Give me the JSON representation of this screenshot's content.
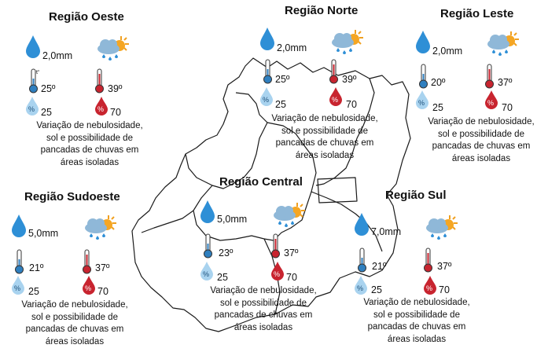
{
  "regions": {
    "oeste": {
      "title": "Região Oeste",
      "rain": "2,0mm",
      "temp_min": "25º",
      "temp_max": "39º",
      "hum_min": "25",
      "hum_max": "70",
      "desc": [
        "Variação de nebulosidade,",
        "sol e possibilidade de",
        "pancadas de chuvas em",
        "áreas isoladas"
      ]
    },
    "norte": {
      "title": "Região Norte",
      "rain": "2,0mm",
      "temp_min": "25º",
      "temp_max": "39º",
      "hum_min": "25",
      "hum_max": "70",
      "desc": [
        "Variação de nebulosidade,",
        "sol e possibilidade de",
        "pancadas de chuvas em",
        "áreas isoladas"
      ]
    },
    "leste": {
      "title": "Região Leste",
      "rain": "2,0mm",
      "temp_min": "20º",
      "temp_max": "37º",
      "hum_min": "25",
      "hum_max": "70",
      "desc": [
        "Variação de nebulosidade,",
        "sol e possibilidade de",
        "pancadas de chuvas em",
        "áreas isoladas"
      ]
    },
    "sudoeste": {
      "title": "Região Sudoeste",
      "rain": "5,0mm",
      "temp_min": "21º",
      "temp_max": "37º",
      "hum_min": "25",
      "hum_max": "70",
      "desc": [
        "Variação de nebulosidade,",
        "sol e possibilidade de",
        "pancadas de chuvas em",
        "áreas isoladas"
      ]
    },
    "central": {
      "title": "Região Central",
      "rain": "5,0mm",
      "temp_min": "23º",
      "temp_max": "37º",
      "hum_min": "25",
      "hum_max": "70",
      "desc": [
        "Variação de nebulosidade,",
        "sol e possibilidade de",
        "pancadas de chuvas em",
        "áreas isoladas"
      ]
    },
    "sul": {
      "title": "Região Sul",
      "rain": "7,0mm",
      "temp_min": "21º",
      "temp_max": "37º",
      "hum_min": "25",
      "hum_max": "70",
      "desc": [
        "Variação de nebulosidade,",
        "sol e possibilidade de",
        "pancadas de chuvas em",
        "áreas isoladas"
      ]
    }
  },
  "thermometer_label": "t°",
  "humidity_label": "%",
  "colors": {
    "rain_drop": "#2e8fd6",
    "cold": "#2f7fbf",
    "hot": "#c8242f",
    "humidity_low": "#a9d3ef",
    "humidity_high": "#c8242f",
    "map_line": "#1a1a1a"
  },
  "icons": [
    "rain-drop-icon",
    "cloud-sun-rain-icon",
    "thermometer-cold-icon",
    "thermometer-hot-icon",
    "humidity-low-icon",
    "humidity-high-icon"
  ]
}
